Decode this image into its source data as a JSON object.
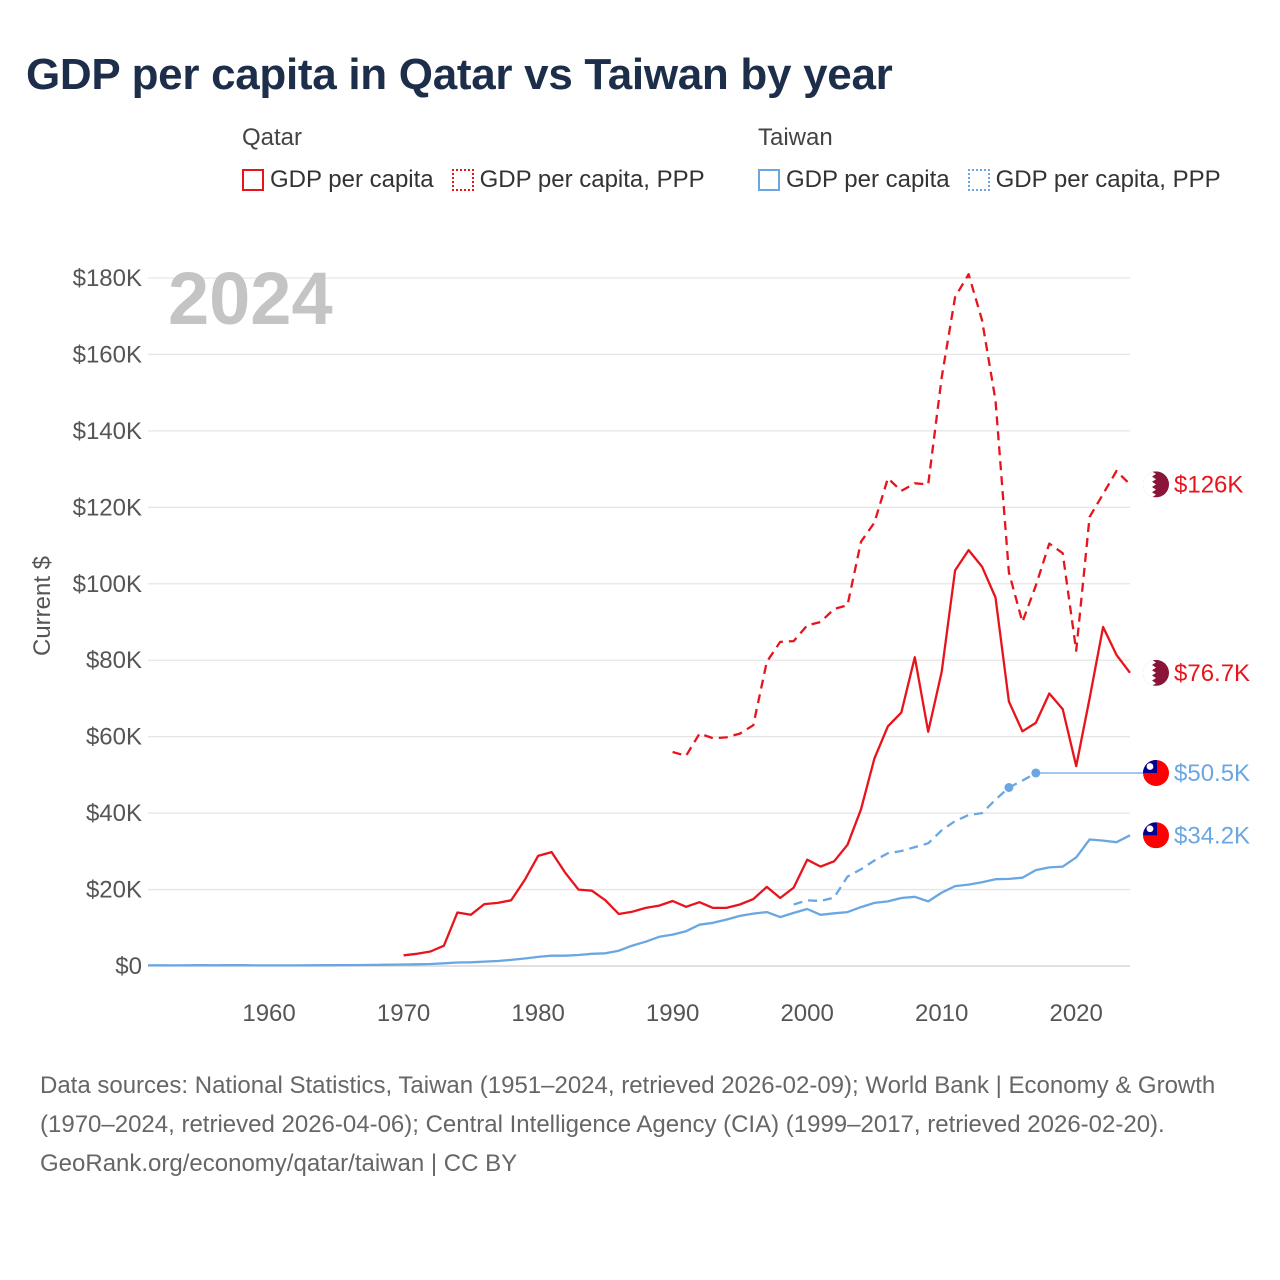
{
  "title": "GDP per capita in Qatar vs Taiwan by year",
  "colors": {
    "qatar": "#e8141c",
    "taiwan": "#6aa7e2",
    "year_watermark": "#c4c4c4",
    "grid": "#e6e6e6",
    "qatar_flag": "#8a1538",
    "taiwan_flag_red": "#fe0000",
    "taiwan_flag_blue": "#000095"
  },
  "legend": {
    "groups": [
      {
        "name": "Qatar",
        "items": [
          {
            "label": "GDP per capita",
            "style": "solid"
          },
          {
            "label": "GDP per capita, PPP",
            "style": "dotted"
          }
        ]
      },
      {
        "name": "Taiwan",
        "items": [
          {
            "label": "GDP per capita",
            "style": "solid"
          },
          {
            "label": "GDP per capita, PPP",
            "style": "dotted"
          }
        ]
      }
    ]
  },
  "year_label": "2024",
  "chart_data": {
    "type": "line",
    "title": "GDP per capita in Qatar vs Taiwan by year",
    "xlabel": "",
    "ylabel": "Current $",
    "xlim": [
      1951,
      2024
    ],
    "ylim": [
      0,
      180000
    ],
    "x_ticks": [
      1960,
      1970,
      1980,
      1990,
      2000,
      2010,
      2020
    ],
    "y_ticks": [
      0,
      20000,
      40000,
      60000,
      80000,
      100000,
      120000,
      140000,
      160000,
      180000
    ],
    "y_tick_labels": [
      "$0",
      "$20K",
      "$40K",
      "$60K",
      "$80K",
      "$100K",
      "$120K",
      "$140K",
      "$160K",
      "$180K"
    ],
    "grid": true,
    "series": [
      {
        "name": "Qatar GDP per capita",
        "country": "Qatar",
        "style": "solid",
        "color": "#e8141c",
        "end_label": "$76.7K",
        "x": [
          1970,
          1971,
          1972,
          1973,
          1974,
          1975,
          1976,
          1977,
          1978,
          1979,
          1980,
          1981,
          1982,
          1983,
          1984,
          1985,
          1986,
          1987,
          1988,
          1989,
          1990,
          1991,
          1992,
          1993,
          1994,
          1995,
          1996,
          1997,
          1998,
          1999,
          2000,
          2001,
          2002,
          2003,
          2004,
          2005,
          2006,
          2007,
          2008,
          2009,
          2010,
          2011,
          2012,
          2013,
          2014,
          2015,
          2016,
          2017,
          2018,
          2019,
          2020,
          2021,
          2022,
          2023,
          2024
        ],
        "values": [
          2800,
          3200,
          3800,
          5300,
          14000,
          13400,
          16200,
          16500,
          17200,
          22500,
          28800,
          29800,
          24500,
          20000,
          19700,
          17200,
          13600,
          14200,
          15200,
          15800,
          17000,
          15500,
          16700,
          15200,
          15200,
          16100,
          17500,
          20700,
          17800,
          20500,
          27800,
          26000,
          27400,
          31700,
          41000,
          54300,
          62700,
          66300,
          80800,
          61300,
          77000,
          103500,
          108800,
          104500,
          96400,
          69200,
          61400,
          63600,
          71300,
          67200,
          52300,
          70000,
          88700,
          81400,
          76700
        ]
      },
      {
        "name": "Qatar GDP per capita, PPP",
        "country": "Qatar",
        "style": "dashed",
        "color": "#e8141c",
        "end_label": "$126K",
        "x": [
          1990,
          1991,
          1992,
          1993,
          1994,
          1995,
          1996,
          1997,
          1998,
          1999,
          2000,
          2001,
          2002,
          2003,
          2004,
          2005,
          2006,
          2007,
          2008,
          2009,
          2010,
          2011,
          2012,
          2013,
          2014,
          2015,
          2016,
          2017,
          2018,
          2019,
          2020,
          2021,
          2022,
          2023,
          2024
        ],
        "values": [
          56000,
          55000,
          60800,
          59600,
          59800,
          60800,
          63000,
          79600,
          84800,
          85000,
          89100,
          90000,
          93400,
          94400,
          111000,
          116000,
          127600,
          124300,
          126300,
          126000,
          154000,
          175000,
          181000,
          169000,
          148000,
          103000,
          90000,
          99500,
          110500,
          108000,
          82500,
          117500,
          123500,
          129500,
          126000
        ]
      },
      {
        "name": "Taiwan GDP per capita",
        "country": "Taiwan",
        "style": "solid",
        "color": "#6aa7e2",
        "end_label": "$34.2K",
        "x": [
          1951,
          1952,
          1953,
          1954,
          1955,
          1956,
          1957,
          1958,
          1959,
          1960,
          1961,
          1962,
          1963,
          1964,
          1965,
          1966,
          1967,
          1968,
          1969,
          1970,
          1971,
          1972,
          1973,
          1974,
          1975,
          1976,
          1977,
          1978,
          1979,
          1980,
          1981,
          1982,
          1983,
          1984,
          1985,
          1986,
          1987,
          1988,
          1989,
          1990,
          1991,
          1992,
          1993,
          1994,
          1995,
          1996,
          1997,
          1998,
          1999,
          2000,
          2001,
          2002,
          2003,
          2004,
          2005,
          2006,
          2007,
          2008,
          2009,
          2010,
          2011,
          2012,
          2013,
          2014,
          2015,
          2016,
          2017,
          2018,
          2019,
          2020,
          2021,
          2022,
          2023,
          2024
        ],
        "values": [
          150,
          190,
          170,
          190,
          200,
          190,
          210,
          220,
          150,
          160,
          150,
          160,
          180,
          210,
          220,
          240,
          270,
          300,
          340,
          390,
          440,
          520,
          700,
          920,
          970,
          1150,
          1320,
          1590,
          1950,
          2390,
          2730,
          2690,
          2880,
          3200,
          3320,
          3990,
          5350,
          6370,
          7630,
          8220,
          9100,
          10800,
          11300,
          12150,
          13100,
          13700,
          14100,
          12800,
          13900,
          14900,
          13400,
          13800,
          14100,
          15400,
          16500,
          16900,
          17800,
          18100,
          16900,
          19200,
          20900,
          21300,
          21900,
          22700,
          22800,
          23100,
          25100,
          25800,
          26000,
          28400,
          33100,
          32800,
          32400,
          34200
        ]
      },
      {
        "name": "Taiwan GDP per capita, PPP",
        "country": "Taiwan",
        "style": "dashed",
        "color": "#6aa7e2",
        "end_label": "$50.5K",
        "x": [
          1999,
          2000,
          2001,
          2002,
          2003,
          2004,
          2005,
          2006,
          2007,
          2008,
          2009,
          2010,
          2011,
          2012,
          2013,
          2014,
          2015,
          2016,
          2017
        ],
        "values": [
          16100,
          17200,
          17000,
          17900,
          23400,
          25300,
          27600,
          29500,
          30100,
          31100,
          32100,
          35500,
          37900,
          39500,
          40000,
          43500,
          46700,
          48500,
          50500
        ]
      }
    ],
    "annotations": {
      "taiwan_ppp_points": [
        2015,
        2017
      ],
      "taiwan_ppp_extended_to": 2024
    }
  },
  "footer": {
    "sources": "Data sources: National Statistics, Taiwan (1951–2024, retrieved 2026-02-09); World Bank | Economy & Growth (1970–2024, retrieved 2026-04-06); Central Intelligence Agency (CIA) (1999–2017, retrieved 2026-02-20).",
    "credit": "GeoRank.org/economy/qatar/taiwan | CC BY"
  }
}
